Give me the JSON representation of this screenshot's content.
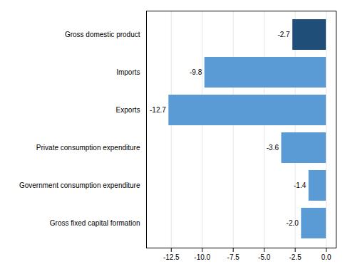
{
  "chart_data": {
    "type": "bar",
    "orientation": "horizontal",
    "categories": [
      "Gross fixed capital formation",
      "Government consumption expenditure",
      "Private consumption expenditure",
      "Exports",
      "Imports",
      "Gross domestic product"
    ],
    "values": [
      -2.0,
      -1.4,
      -3.6,
      -12.7,
      -9.8,
      -2.7
    ],
    "value_labels": [
      "-2.0",
      "-1.4",
      "-3.6",
      "-12.7",
      "-9.8",
      "-2.7"
    ],
    "data_labels": true,
    "colors": [
      "#5b9bd5",
      "#5b9bd5",
      "#5b9bd5",
      "#5b9bd5",
      "#5b9bd5",
      "#1f4e79"
    ],
    "xlim": [
      -14.5,
      0.8
    ],
    "xticks": [
      -12.5,
      {
        "value": -10.0,
        "label": "-10.0"
      },
      -7.5,
      {
        "value": -5.0,
        "label": "-5.0"
      },
      -2.5,
      {
        "value": 0.0,
        "label": "0.0"
      }
    ],
    "grid": true
  }
}
